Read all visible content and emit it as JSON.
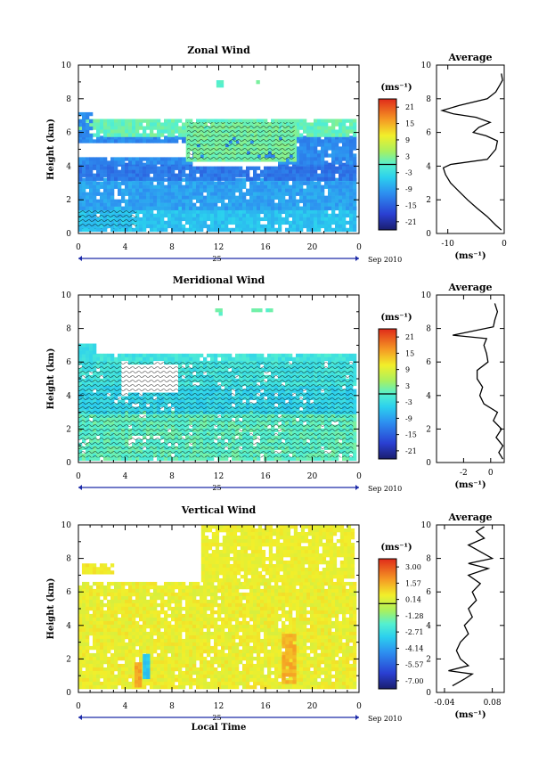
{
  "chart_data": [
    {
      "type": "heatmap",
      "title": "Zonal Wind",
      "xlabel": "",
      "ylabel": "Height (km)",
      "x_ticks": [
        "0",
        "4",
        "8",
        "12",
        "16",
        "20",
        "0"
      ],
      "xlim": [
        0,
        24
      ],
      "y_ticks": [
        "0",
        "2",
        "4",
        "6",
        "8",
        "10"
      ],
      "ylim": [
        0,
        10
      ],
      "date_day": "25",
      "date_label": "Sep 2010",
      "colorbar": {
        "unit": "(ms⁻¹)",
        "labels": [
          "21",
          "15",
          "9",
          "3",
          "-3",
          "-9",
          "-15",
          "-21"
        ],
        "range": [
          -24,
          24
        ],
        "zero_line": 0
      },
      "field": {
        "layers": [
          {
            "z0": 0.3,
            "z1": 1.6,
            "value": -6
          },
          {
            "z0": 1.6,
            "z1": 3.3,
            "value": -9
          },
          {
            "z0": 3.3,
            "z1": 4.2,
            "value": -13
          },
          {
            "z0": 4.2,
            "z1": 5.8,
            "value": -11
          },
          {
            "z0": 5.8,
            "z1": 6.8,
            "value": 1
          }
        ],
        "gaps": [
          {
            "x0": 0,
            "x1": 9.5,
            "z0": 4.7,
            "z1": 5.4
          },
          {
            "x0": 9.5,
            "x1": 17,
            "z0": 4.2,
            "z1": 4.5
          }
        ],
        "upper_patches": [
          {
            "x0": 9.2,
            "x1": 18.6,
            "z0": 4.3,
            "z1": 6.6,
            "value": 2
          },
          {
            "x0": 0,
            "x1": 1.2,
            "z0": 5.8,
            "z1": 7.2,
            "value": -11
          },
          {
            "x0": 11.8,
            "x1": 12.2,
            "z0": 8.8,
            "z1": 9.1,
            "value": 1
          },
          {
            "x0": 15.2,
            "x1": 15.8,
            "z0": 8.9,
            "z1": 9.1,
            "value": 1
          }
        ]
      },
      "average_profile": {
        "title": "Average",
        "xlabel": "(ms⁻¹)",
        "x_ticks": [
          "-10",
          "0"
        ],
        "xlim": [
          -12,
          0
        ],
        "height_ticks": [
          "0",
          "2",
          "4",
          "6",
          "8",
          "10"
        ],
        "z": [
          0.2,
          0.5,
          1.0,
          1.5,
          2.0,
          2.5,
          3.0,
          3.5,
          3.9,
          4.1,
          4.4,
          5.0,
          5.5,
          5.8,
          6.0,
          6.3,
          6.6,
          6.9,
          7.1,
          7.3,
          7.6,
          8.0,
          8.4,
          8.8,
          9.1,
          9.5
        ],
        "values": [
          -0.5,
          -1.5,
          -3,
          -4.8,
          -6.5,
          -8,
          -9.5,
          -10.4,
          -10.8,
          -9.5,
          -3,
          -1.5,
          -1.2,
          -3.2,
          -5.5,
          -4.5,
          -2.5,
          -5,
          -9,
          -11,
          -8,
          -3,
          -1.5,
          -0.8,
          -0.3,
          -0.5
        ]
      }
    },
    {
      "type": "heatmap",
      "title": "Meridional Wind",
      "xlabel": "",
      "ylabel": "Height (km)",
      "x_ticks": [
        "0",
        "4",
        "8",
        "12",
        "16",
        "20",
        "0"
      ],
      "xlim": [
        0,
        24
      ],
      "y_ticks": [
        "0",
        "2",
        "4",
        "6",
        "8",
        "10"
      ],
      "ylim": [
        0,
        10
      ],
      "date_day": "25",
      "date_label": "Sep 2010",
      "colorbar": {
        "unit": "(ms⁻¹)",
        "labels": [
          "21",
          "15",
          "9",
          "3",
          "-3",
          "-9",
          "-15",
          "-21"
        ],
        "range": [
          -24,
          24
        ],
        "zero_line": 0
      },
      "field": {
        "layers": [
          {
            "z0": 0.3,
            "z1": 3.1,
            "value": 0.5
          },
          {
            "z0": 3.1,
            "z1": 4.6,
            "value": -4
          },
          {
            "z0": 4.6,
            "z1": 6.5,
            "value": -2
          }
        ],
        "gaps": [
          {
            "x0": 3.5,
            "x1": 8.5,
            "z0": 4.3,
            "z1": 6.0
          }
        ],
        "upper_patches": [
          {
            "x0": 0,
            "x1": 1.5,
            "z0": 6.0,
            "z1": 7.1,
            "value": -3
          },
          {
            "x0": 11.7,
            "x1": 12.1,
            "z0": 8.9,
            "z1": 9.2,
            "value": 1
          },
          {
            "x0": 14.8,
            "x1": 16.4,
            "z0": 9.0,
            "z1": 9.2,
            "value": 1
          }
        ]
      },
      "average_profile": {
        "title": "Average",
        "xlabel": "(ms⁻¹)",
        "x_ticks": [
          "-2",
          "0"
        ],
        "xlim": [
          -4,
          1
        ],
        "height_ticks": [
          "0",
          "2",
          "4",
          "6",
          "8",
          "10"
        ],
        "z": [
          0.2,
          0.6,
          1.0,
          1.5,
          2.0,
          2.5,
          3.0,
          3.5,
          4.0,
          4.5,
          5.0,
          5.5,
          6.0,
          6.5,
          7.0,
          7.4,
          7.6,
          7.8,
          8.1,
          8.5,
          9.0,
          9.5
        ],
        "values": [
          0.9,
          0.6,
          0.9,
          0.4,
          0.8,
          0.2,
          0.5,
          -0.5,
          -0.8,
          -0.6,
          -1.0,
          -1.0,
          -0.2,
          -0.3,
          -0.5,
          -0.3,
          -2.8,
          -1.6,
          0.2,
          0.3,
          0.5,
          0.3
        ]
      }
    },
    {
      "type": "heatmap",
      "title": "Vertical Wind",
      "xlabel": "Local Time",
      "ylabel": "Height (km)",
      "x_ticks": [
        "0",
        "4",
        "8",
        "12",
        "16",
        "20",
        "0"
      ],
      "xlim": [
        0,
        24
      ],
      "y_ticks": [
        "0",
        "2",
        "4",
        "6",
        "8",
        "10"
      ],
      "ylim": [
        0,
        10
      ],
      "date_day": "25",
      "date_label": "Sep 2010",
      "colorbar": {
        "unit": "(ms⁻¹)",
        "labels": [
          "3.00",
          "1.57",
          "0.14",
          "-1.28",
          "-2.71",
          "-4.14",
          "-5.57",
          "-7.00"
        ],
        "range": [
          -8.43,
          4.43
        ],
        "zero_line": 0
      },
      "field": {
        "layers": [
          {
            "z0": 0.3,
            "z1": 6.6,
            "value": 0.7
          }
        ],
        "gaps": [
          {
            "x0": 0,
            "x1": 7.0,
            "z0": 6.6,
            "z1": 7.0
          }
        ],
        "upper_patches": [
          {
            "x0": 10.5,
            "x1": 23.5,
            "z0": 6.6,
            "z1": 10,
            "value": 0.7
          },
          {
            "x0": 0.3,
            "x1": 3.0,
            "z0": 7.2,
            "z1": 7.7,
            "value": 0.9
          },
          {
            "x0": 5.5,
            "x1": 5.9,
            "z0": 0.9,
            "z1": 2.3,
            "value": -3.5
          },
          {
            "x0": 4.8,
            "x1": 5.4,
            "z0": 0.5,
            "z1": 1.8,
            "value": 2.2
          },
          {
            "x0": 17.4,
            "x1": 18.6,
            "z0": 0.6,
            "z1": 3.5,
            "value": 2.0
          }
        ]
      },
      "average_profile": {
        "title": "Average",
        "xlabel": "(ms⁻¹)",
        "x_ticks": [
          "-0.04",
          "0.08"
        ],
        "xlim": [
          -0.06,
          0.11
        ],
        "height_ticks": [
          "0",
          "2",
          "4",
          "6",
          "8",
          "10"
        ],
        "z": [
          0.4,
          0.8,
          1.1,
          1.3,
          1.6,
          2.0,
          2.5,
          3.0,
          3.5,
          4.0,
          4.5,
          5.0,
          5.5,
          6.0,
          6.5,
          7.0,
          7.4,
          7.7,
          8.0,
          8.4,
          8.8,
          9.2,
          9.6,
          9.9
        ],
        "values": [
          -0.02,
          0.01,
          0.03,
          -0.03,
          0.02,
          0.0,
          -0.01,
          0.0,
          0.02,
          0.01,
          0.03,
          0.02,
          0.04,
          0.03,
          0.05,
          0.02,
          0.07,
          0.02,
          0.08,
          0.05,
          0.02,
          0.06,
          0.04,
          0.06
        ]
      }
    }
  ]
}
